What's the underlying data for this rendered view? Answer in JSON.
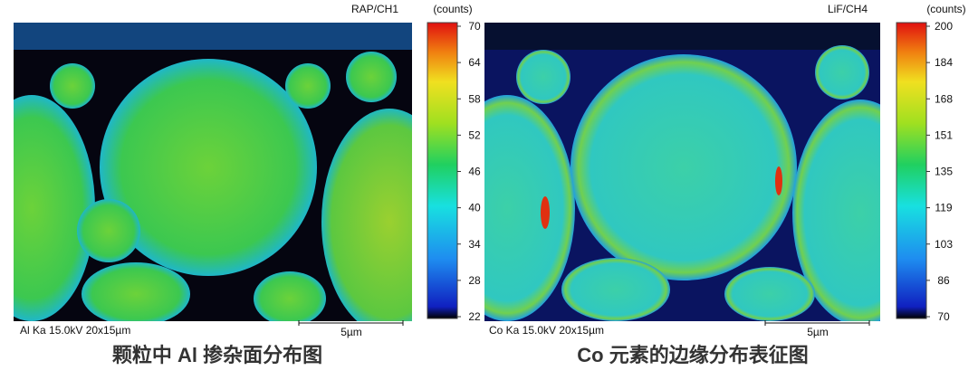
{
  "panels": [
    {
      "channel": "RAP/CH1",
      "unit": "(counts)",
      "colorbar_ticks": [
        "70",
        "64",
        "58",
        "52",
        "46",
        "40",
        "34",
        "28",
        "22"
      ],
      "info": "Al Ka 15.0kV 20x15µm",
      "scale": "5µm",
      "caption": "颗粒中 Al 掺杂面分布图"
    },
    {
      "channel": "LiF/CH4",
      "unit": "(counts)",
      "colorbar_ticks": [
        "200",
        "184",
        "168",
        "151",
        "135",
        "119",
        "103",
        "86",
        "70"
      ],
      "info": "Co Ka 15.0kV 20x15µm",
      "scale": "5µm",
      "caption": "Co 元素的边缘分布表征图"
    }
  ]
}
